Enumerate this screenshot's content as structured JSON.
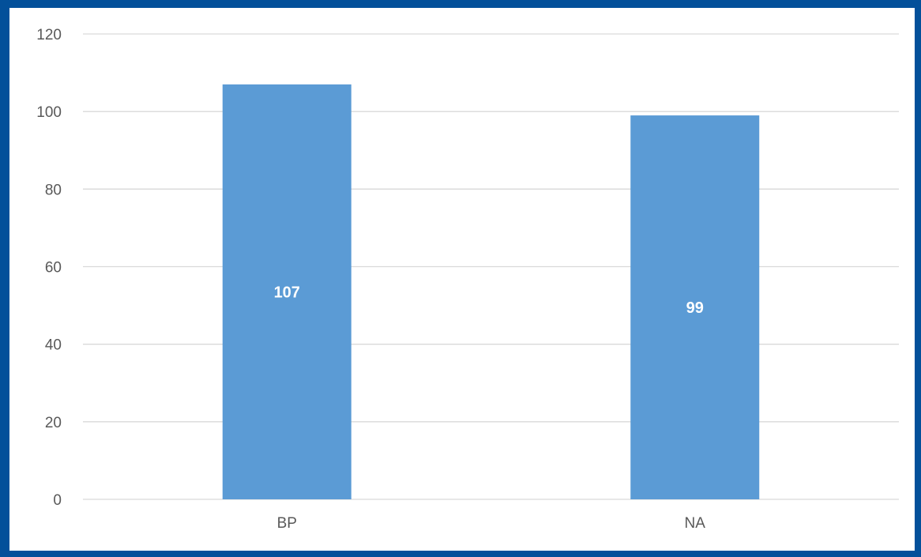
{
  "theme": {
    "frame_color": "#03509a",
    "bar_color": "#5b9bd5",
    "grid_color": "#d9d9d9",
    "text_color": "#595959",
    "label_color": "#ffffff"
  },
  "chart_data": {
    "type": "bar",
    "categories": [
      "BP",
      "NA"
    ],
    "values": [
      107,
      99
    ],
    "data_labels": [
      "107",
      "99"
    ],
    "ylim": [
      0,
      120
    ],
    "y_ticks": [
      0,
      20,
      40,
      60,
      80,
      100,
      120
    ],
    "grid": true,
    "legend": "none"
  }
}
